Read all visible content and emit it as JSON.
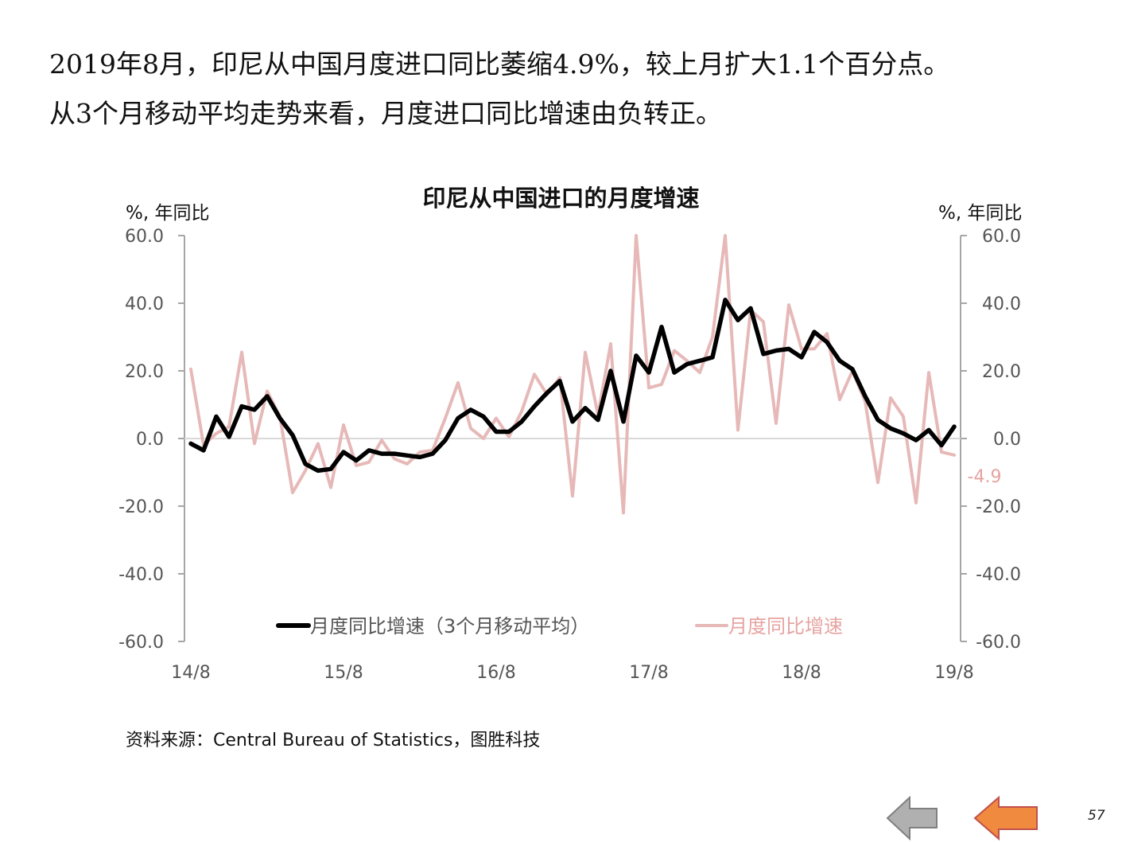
{
  "headline": {
    "line1": "2019年8月，印尼从中国月度进口同比萎缩4.9%，较上月扩大1.1个百分点。",
    "line2": "从3个月移动平均走势来看，月度进口同比增速由负转正。"
  },
  "source": "资料来源：Central  Bureau of Statistics，图胜科技",
  "page_number": "57",
  "nav": {
    "prev_icon": "left-arrow-gray-icon",
    "next_icon": "left-arrow-orange-icon"
  },
  "colors": {
    "ma_line": "#000000",
    "monthly_line": "#e6b9b8",
    "annotation": "#e6a3a1",
    "axis": "#a6a6a6"
  },
  "chart_data": {
    "type": "line",
    "title": "印尼从中国进口的月度增速",
    "ylabel_left": "%, 年同比",
    "ylabel_right": "%, 年同比",
    "ylim": [
      -60,
      60
    ],
    "yticks": [
      "60.0",
      "40.0",
      "20.0",
      "0.0",
      "-20.0",
      "-40.0",
      "-60.0"
    ],
    "xticks": [
      "14/8",
      "15/8",
      "16/8",
      "17/8",
      "18/8",
      "19/8"
    ],
    "x_start": "2014-08",
    "x_end": "2019-08",
    "annotation": "-4.9",
    "legend_position": "bottom",
    "series": [
      {
        "name": "月度同比增速（3个月移动平均）",
        "values": [
          -1.5,
          -3.5,
          6.5,
          0.5,
          9.5,
          8.5,
          12.5,
          6,
          1,
          -7.5,
          -9.5,
          -9,
          -4,
          -6.5,
          -3.5,
          -4.5,
          -4.5,
          -5,
          -5.5,
          -4.5,
          -0.5,
          6,
          8.5,
          6.5,
          2,
          2,
          5,
          9.5,
          13.5,
          17,
          5,
          9,
          5.5,
          20,
          5,
          24.5,
          19.5,
          33,
          19.5,
          22,
          23,
          24,
          41,
          35,
          38.5,
          25,
          26,
          26.5,
          24,
          31.5,
          28.5,
          23,
          20.5,
          12.5,
          5.5,
          3,
          1.5,
          -0.5,
          2.5,
          -2,
          3.5
        ]
      },
      {
        "name": "月度同比增速",
        "values": [
          20.5,
          -2,
          1.5,
          3.5,
          25.5,
          -1.5,
          14,
          6.5,
          -16,
          -9.5,
          -1.5,
          -14.5,
          4,
          -8,
          -7,
          -0.5,
          -6,
          -7.5,
          -4,
          -3.5,
          6,
          16.5,
          3,
          0,
          6,
          0.5,
          8,
          19,
          13,
          18,
          -17,
          25.5,
          7,
          28,
          -22,
          60,
          15,
          16,
          26,
          23,
          19.5,
          30,
          60,
          2.5,
          38,
          34.5,
          4.5,
          39.5,
          26.5,
          26.5,
          31,
          11.5,
          20,
          11,
          -13,
          12,
          6.5,
          -19,
          19.5,
          -4,
          -4.9
        ]
      }
    ]
  }
}
